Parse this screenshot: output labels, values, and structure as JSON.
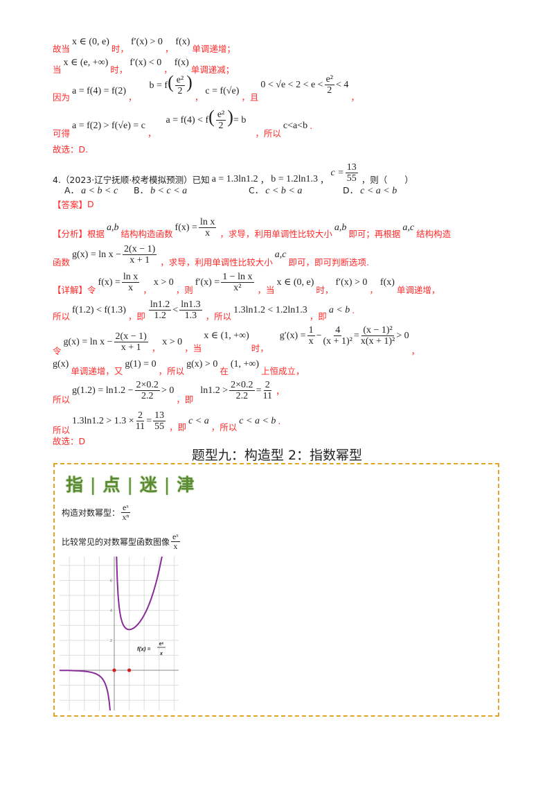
{
  "prev": {
    "l1": {
      "t1": "故当",
      "m1": "x ∈ (0, e)",
      "t2": "时，",
      "m2": "f′(x) > 0",
      "t3": "，",
      "m3": "f(x)",
      "t4": "单调递增；"
    },
    "l2": {
      "t1": "当",
      "m1": "x ∈ (e, +∞)",
      "t2": "时，",
      "m2": "f′(x) < 0",
      "t3": "，",
      "m3": "f(x)",
      "t4": "单调递减；"
    },
    "l3": {
      "t1": "因为",
      "m1": "a = f(4) = f(2)",
      "t2": "，",
      "m2a": "b = f",
      "num": "e²",
      "den": "2",
      "t3": "，",
      "m3": "c = f(√e)",
      "t4": "，且",
      "m4a": "0 < √e < 2 < e <",
      "m4b": "< 4",
      "t5": "，"
    },
    "l4": {
      "t1": "可得",
      "m1": "a = f(2) > f(√e) = c",
      "t2": "，",
      "m2a": "a = f(4) < f",
      "num": "e²",
      "den": "2",
      "m2b": "= b",
      "t3": "，所以",
      "m3": "c<a<b",
      "t4": "."
    },
    "l5": "故选：D.",
    "q4": {
      "num": "4.（2023·辽宁抚顺·校考模拟预测）已知",
      "ma": "a = 1.3ln1.2",
      "s1": "，",
      "mb": "b = 1.2ln1.3",
      "s2": "，",
      "mc": "c =",
      "cnum": "13",
      "cden": "55",
      "s3": "，则（　　）"
    },
    "options": [
      {
        "label": "A．",
        "expr": "a < b < c"
      },
      {
        "label": "B．",
        "expr": "b < c < a"
      },
      {
        "label": "C．",
        "expr": "c < b < a"
      },
      {
        "label": "D．",
        "expr": "c < a < b"
      }
    ],
    "answer": {
      "tag": "【答案】",
      "value": "D"
    },
    "analysis": {
      "tag": "【分析】",
      "t1": "根据",
      "m1": "a,b",
      "t2": "结构构造函数",
      "fx": "f(x) =",
      "fnum": "ln x",
      "fden": "x",
      "t3": "，求导，利用单调性比较大小",
      "m2": "a,b",
      "t4": "即可；再根据",
      "m3": "a,c",
      "t5": "结构构造",
      "t6": "函数",
      "gx": "g(x) = ln x −",
      "gnum": "2(x − 1)",
      "gden": "x + 1",
      "t7": "，求导，利用单调性比较大小",
      "m4": "a,c",
      "t8": "即可，即可判断选项."
    },
    "detail": {
      "d1": {
        "tag": "【详解】",
        "t1": "令",
        "fx": "f(x) =",
        "fnum": "ln x",
        "fden": "x",
        "t2": "，",
        "m1": "x > 0",
        "t3": "，则",
        "fpx": "f′(x) =",
        "fpnum": "1 − ln x",
        "fpden": "x²",
        "t4": "，当",
        "m2": "x ∈ (0, e)",
        "t5": "时，",
        "m3": "f′(x) > 0",
        "t6": "，",
        "m4": "f(x)",
        "t7": "单调递增，"
      },
      "d2": {
        "t1": "所以",
        "m1": "f(1.2) < f(1.3)",
        "t2": "，即",
        "n1": "ln1.2",
        "d1": "1.2",
        "lt": "<",
        "n2": "ln1.3",
        "d2": "1.3",
        "t3": "，所以",
        "m2": "1.3ln1.2 < 1.2ln1.3",
        "t4": "，即",
        "m3": "a < b",
        "t5": "."
      },
      "d3": {
        "t1": "令",
        "gx": "g(x) = ln x −",
        "gnum": "2(x − 1)",
        "gden": "x + 1",
        "t2": "，",
        "m1": "x > 0",
        "t3": "，当",
        "m2": "x ∈ (1, +∞)",
        "t4": "时，",
        "gp": "g′(x) =",
        "a_num": "1",
        "a_den": "x",
        "minus": "−",
        "b_num": "4",
        "b_den": "(x + 1)²",
        "eq": "=",
        "c_num": "(x − 1)²",
        "c_den": "x(x + 1)²",
        "gt": "> 0",
        "t5": "，"
      },
      "d4": {
        "m1": "g(x)",
        "t1": "单调递增，又",
        "m2": "g(1) = 0",
        "t2": "，所以",
        "m3": "g(x) > 0",
        "t3": "在",
        "m4": "(1, +∞)",
        "t4": "上恒成立，"
      },
      "d5": {
        "t1": "所以",
        "m1": "g(1.2) = ln1.2 −",
        "n1": "2×0.2",
        "d1": "2.2",
        "gt": "> 0",
        "t2": "，即",
        "m2": "ln1.2 >",
        "n2": "2×0.2",
        "d2": "2.2",
        "eq": "=",
        "n3": "2",
        "d3": "11",
        "t3": "，"
      },
      "d6": {
        "t1": "所以",
        "m1": "1.3ln1.2 > 1.3 ×",
        "n1": "2",
        "d1": "11",
        "eq": "=",
        "n2": "13",
        "d2": "55",
        "t2": "，即",
        "m2": "c < a",
        "t3": "，所以",
        "m3": "c < a < b",
        "t4": "."
      },
      "d7": "故选：D"
    }
  },
  "section_title": "题型九：构造型 2：指数幂型",
  "tips_box": {
    "heading": [
      "指",
      "点",
      "迷",
      "津"
    ],
    "l1": {
      "text": "构造对数幂型：",
      "num": "eˣ",
      "den": "xⁿ"
    },
    "l2": {
      "text": "比较常见的对数幂型函数图像",
      "num": "eˣ",
      "den": "x"
    },
    "graph": {
      "label": "f(x) =",
      "lnum": "eˣ",
      "lden": "x",
      "y_ticks": [
        "2",
        "4",
        "6"
      ],
      "curve_color": "#8a2a9a",
      "point_color": "#d42020",
      "points": [
        [
          0,
          0
        ],
        [
          1,
          0
        ]
      ]
    }
  },
  "colors": {
    "red_text": "#ff2a2a",
    "border": "#e0a420",
    "heading_green": "#5a8a32"
  }
}
